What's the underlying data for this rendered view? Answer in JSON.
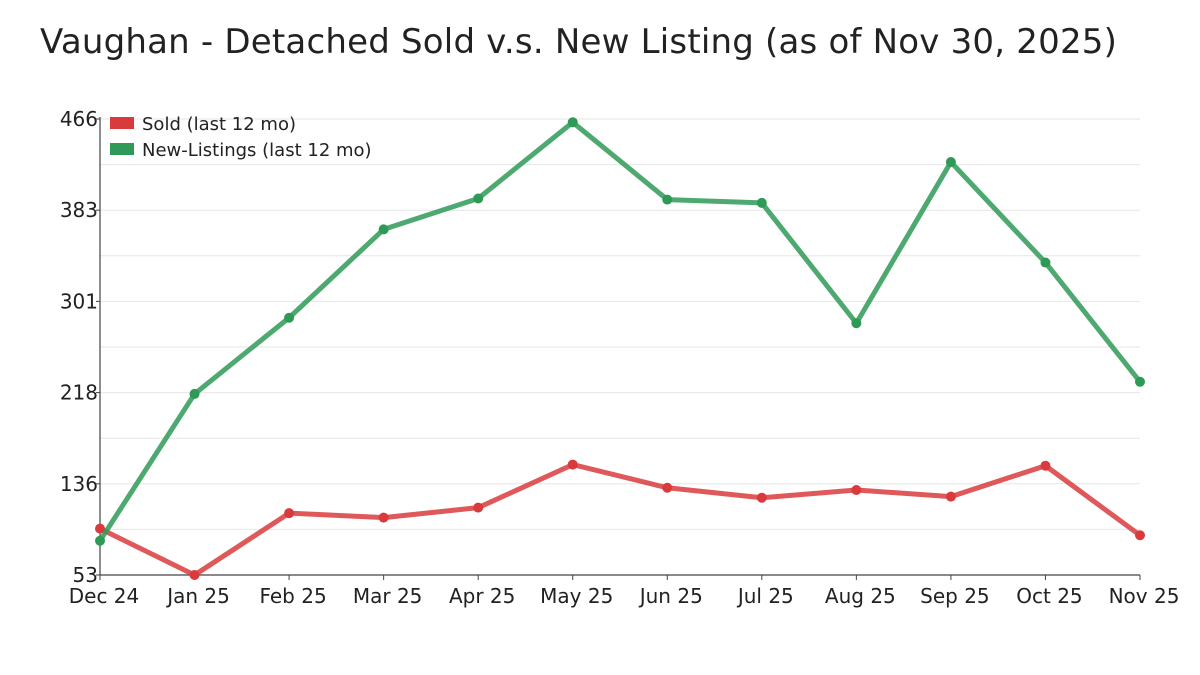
{
  "chart_data": {
    "type": "line",
    "title": "Vaughan - Detached Sold v.s. New Listing (as of Nov 30, 2025)",
    "xlabel": "",
    "ylabel": "",
    "categories": [
      "Dec 24",
      "Jan 25",
      "Feb 25",
      "Mar 25",
      "Apr 25",
      "May 25",
      "Jun 25",
      "Jul 25",
      "Aug 25",
      "Sep 25",
      "Oct 25",
      "Nov 25"
    ],
    "y_ticks": [
      "53",
      "136",
      "218",
      "301",
      "383",
      "466"
    ],
    "ylim": [
      53,
      466
    ],
    "grid": true,
    "legend_position": "top-left",
    "series": [
      {
        "name": "Sold (last 12 mo)",
        "color": "#d93b3d",
        "values": [
          95,
          53,
          109,
          105,
          114,
          153,
          132,
          123,
          130,
          124,
          152,
          89
        ]
      },
      {
        "name": "New-Listings (last 12 mo)",
        "color": "#2f9a58",
        "values": [
          84,
          217,
          286,
          366,
          394,
          463,
          393,
          390,
          281,
          427,
          336,
          228
        ]
      }
    ]
  }
}
